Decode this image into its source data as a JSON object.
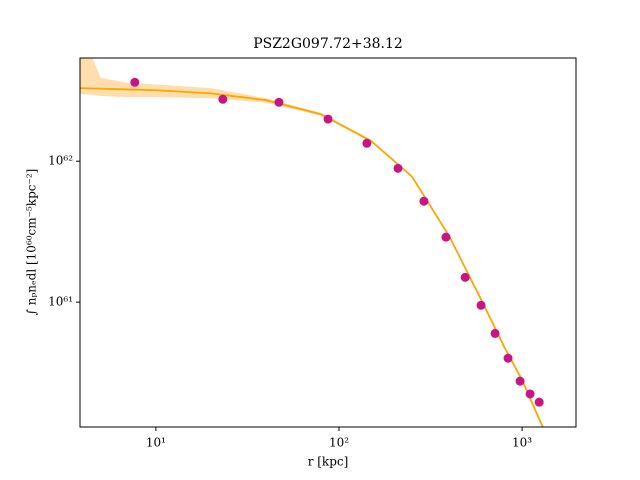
{
  "chart_data": {
    "type": "scatter",
    "title": "PSZ2G097.72+38.12",
    "xlabel": "r [kpc]",
    "ylabel": "∫ nₚnₑdl [10⁶⁰cm⁻⁵kpc⁻²]",
    "xscale": "log",
    "yscale": "log",
    "xlim": [
      3.85,
      1970
    ],
    "ylim": [
      1.3e+60,
      5.4e+62
    ],
    "xticks": [
      {
        "value": 10,
        "label": "10¹"
      },
      {
        "value": 100,
        "label": "10²"
      },
      {
        "value": 1000,
        "label": "10³"
      }
    ],
    "yticks": [
      {
        "value": 1e+61,
        "label": "10⁶¹"
      },
      {
        "value": 1e+62,
        "label": "10⁶²"
      }
    ],
    "series": [
      {
        "kind": "points",
        "color": "#c71585",
        "x": [
          7.67,
          23.2,
          47.0,
          87.1,
          142,
          210,
          291,
          384,
          489,
          597,
          712,
          838,
          975,
          1106,
          1240
        ],
        "values": [
          3.63e+62,
          2.75e+62,
          2.62e+62,
          1.99e+62,
          1.34e+62,
          8.9e+61,
          5.2e+61,
          2.89e+61,
          1.5e+61,
          9.5e+60,
          6e+60,
          4e+60,
          2.75e+60,
          2.23e+60,
          1.95e+60
        ]
      },
      {
        "kind": "line",
        "color": "#ffa500",
        "x": [
          3.85,
          10,
          20,
          40,
          80,
          150,
          250,
          400,
          600,
          800,
          1000,
          1300
        ],
        "values": [
          3.3e+62,
          3.19e+62,
          3.03e+62,
          2.71e+62,
          2.15e+62,
          1.39e+62,
          7.8e+61,
          2.94e+61,
          1.03e+61,
          4.8e+60,
          2.8e+60,
          1.29e+60
        ]
      },
      {
        "kind": "band",
        "color": "#ffd699",
        "x": [
          3.85,
          4.5,
          5,
          7,
          10,
          20,
          40,
          80,
          150
        ],
        "upper": [
          5.4e+62,
          5.4e+62,
          3.9e+62,
          3.6e+62,
          3.5e+62,
          3.3e+62,
          2.8e+62,
          2.2e+62,
          1.42e+62
        ],
        "lower": [
          3e+62,
          2.95e+62,
          2.9e+62,
          2.85e+62,
          2.85e+62,
          2.8e+62,
          2.6e+62,
          2.1e+62,
          1.36e+62
        ]
      }
    ]
  }
}
